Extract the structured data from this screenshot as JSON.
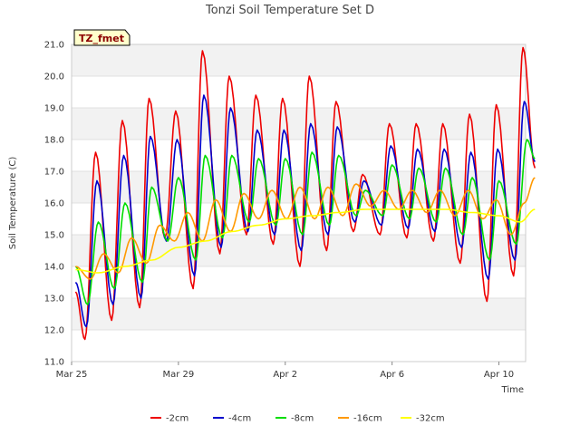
{
  "chart_data": {
    "type": "line",
    "title": "Tonzi Soil Temperature Set D",
    "xlabel": "Time",
    "ylabel": "Soil Temperature (C)",
    "badge": "TZ_fmet",
    "x_unit": "days",
    "xlim": [
      0,
      17.0
    ],
    "ylim": [
      11.0,
      21.0
    ],
    "grid": "alternating bands",
    "legend": "bottom-center",
    "x_ticks": [
      {
        "label": "Mar 25",
        "value": 0
      },
      {
        "label": "Mar 29",
        "value": 4
      },
      {
        "label": "Apr 2",
        "value": 8
      },
      {
        "label": "Apr 6",
        "value": 12
      },
      {
        "label": "Apr 10",
        "value": 16
      }
    ],
    "y_ticks": [
      "11.0",
      "12.0",
      "13.0",
      "14.0",
      "15.0",
      "16.0",
      "17.0",
      "18.0",
      "19.0",
      "20.0",
      "21.0"
    ],
    "series": [
      {
        "name": "-2cm",
        "color": "#ee0000",
        "points": [
          [
            0.15,
            13.2
          ],
          [
            0.5,
            11.7
          ],
          [
            0.9,
            17.6
          ],
          [
            1.5,
            12.3
          ],
          [
            1.9,
            18.6
          ],
          [
            2.55,
            12.7
          ],
          [
            2.9,
            19.3
          ],
          [
            3.5,
            14.9
          ],
          [
            3.9,
            18.9
          ],
          [
            4.55,
            13.3
          ],
          [
            4.9,
            20.8
          ],
          [
            5.55,
            14.4
          ],
          [
            5.9,
            20.0
          ],
          [
            6.55,
            15.0
          ],
          [
            6.9,
            19.4
          ],
          [
            7.55,
            14.7
          ],
          [
            7.9,
            19.3
          ],
          [
            8.55,
            14.0
          ],
          [
            8.9,
            20.0
          ],
          [
            9.55,
            14.5
          ],
          [
            9.9,
            19.2
          ],
          [
            10.55,
            15.1
          ],
          [
            10.9,
            16.9
          ],
          [
            11.55,
            15.0
          ],
          [
            11.9,
            18.5
          ],
          [
            12.55,
            14.9
          ],
          [
            12.9,
            18.5
          ],
          [
            13.55,
            14.8
          ],
          [
            13.9,
            18.5
          ],
          [
            14.55,
            14.1
          ],
          [
            14.9,
            18.8
          ],
          [
            15.55,
            12.9
          ],
          [
            15.9,
            19.1
          ],
          [
            16.55,
            13.7
          ],
          [
            16.9,
            20.9
          ],
          [
            17.35,
            17.1
          ]
        ]
      },
      {
        "name": "-4cm",
        "color": "#0000cc",
        "points": [
          [
            0.15,
            13.5
          ],
          [
            0.55,
            12.1
          ],
          [
            0.95,
            16.7
          ],
          [
            1.55,
            12.8
          ],
          [
            1.95,
            17.5
          ],
          [
            2.6,
            13.0
          ],
          [
            2.95,
            18.1
          ],
          [
            3.55,
            14.8
          ],
          [
            3.95,
            18.0
          ],
          [
            4.6,
            13.7
          ],
          [
            4.95,
            19.4
          ],
          [
            5.6,
            14.6
          ],
          [
            5.95,
            19.0
          ],
          [
            6.6,
            15.1
          ],
          [
            6.95,
            18.3
          ],
          [
            7.6,
            15.0
          ],
          [
            7.95,
            18.3
          ],
          [
            8.6,
            14.5
          ],
          [
            8.95,
            18.5
          ],
          [
            9.6,
            15.0
          ],
          [
            9.95,
            18.4
          ],
          [
            10.6,
            15.4
          ],
          [
            10.95,
            16.7
          ],
          [
            11.6,
            15.3
          ],
          [
            11.95,
            17.8
          ],
          [
            12.6,
            15.2
          ],
          [
            12.95,
            17.7
          ],
          [
            13.6,
            15.1
          ],
          [
            13.95,
            17.7
          ],
          [
            14.6,
            14.6
          ],
          [
            14.95,
            17.6
          ],
          [
            15.6,
            13.6
          ],
          [
            15.95,
            17.7
          ],
          [
            16.6,
            14.2
          ],
          [
            16.95,
            19.2
          ],
          [
            17.35,
            17.3
          ]
        ]
      },
      {
        "name": "-8cm",
        "color": "#00dd00",
        "points": [
          [
            0.15,
            14.0
          ],
          [
            0.6,
            12.8
          ],
          [
            1.0,
            15.4
          ],
          [
            1.6,
            13.3
          ],
          [
            2.0,
            16.0
          ],
          [
            2.65,
            13.5
          ],
          [
            3.0,
            16.5
          ],
          [
            3.6,
            14.8
          ],
          [
            4.0,
            16.8
          ],
          [
            4.65,
            14.2
          ],
          [
            5.0,
            17.5
          ],
          [
            5.65,
            14.9
          ],
          [
            6.0,
            17.5
          ],
          [
            6.65,
            15.4
          ],
          [
            7.0,
            17.4
          ],
          [
            7.65,
            15.3
          ],
          [
            8.0,
            17.4
          ],
          [
            8.65,
            15.0
          ],
          [
            9.0,
            17.6
          ],
          [
            9.65,
            15.3
          ],
          [
            10.0,
            17.5
          ],
          [
            10.65,
            15.6
          ],
          [
            11.0,
            16.4
          ],
          [
            11.65,
            15.6
          ],
          [
            12.0,
            17.2
          ],
          [
            12.65,
            15.5
          ],
          [
            13.0,
            17.1
          ],
          [
            13.65,
            15.4
          ],
          [
            14.0,
            17.1
          ],
          [
            14.65,
            15.0
          ],
          [
            15.0,
            16.8
          ],
          [
            15.65,
            14.2
          ],
          [
            16.0,
            16.7
          ],
          [
            16.65,
            14.7
          ],
          [
            17.05,
            18.0
          ],
          [
            17.35,
            17.4
          ]
        ]
      },
      {
        "name": "-16cm",
        "color": "#ff9900",
        "points": [
          [
            0.15,
            14.0
          ],
          [
            0.7,
            13.6
          ],
          [
            1.2,
            14.4
          ],
          [
            1.75,
            13.8
          ],
          [
            2.25,
            14.9
          ],
          [
            2.8,
            14.1
          ],
          [
            3.3,
            15.3
          ],
          [
            3.85,
            14.8
          ],
          [
            4.35,
            15.7
          ],
          [
            4.9,
            14.8
          ],
          [
            5.4,
            16.1
          ],
          [
            5.95,
            15.1
          ],
          [
            6.45,
            16.3
          ],
          [
            7.0,
            15.5
          ],
          [
            7.5,
            16.4
          ],
          [
            8.05,
            15.5
          ],
          [
            8.55,
            16.5
          ],
          [
            9.1,
            15.5
          ],
          [
            9.6,
            16.5
          ],
          [
            10.15,
            15.6
          ],
          [
            10.65,
            16.6
          ],
          [
            11.2,
            15.9
          ],
          [
            11.7,
            16.4
          ],
          [
            12.25,
            15.8
          ],
          [
            12.75,
            16.4
          ],
          [
            13.3,
            15.7
          ],
          [
            13.8,
            16.4
          ],
          [
            14.35,
            15.6
          ],
          [
            14.85,
            16.4
          ],
          [
            15.4,
            15.5
          ],
          [
            15.9,
            16.1
          ],
          [
            16.45,
            15.0
          ],
          [
            16.95,
            16.0
          ],
          [
            17.35,
            16.8
          ]
        ]
      },
      {
        "name": "-32cm",
        "color": "#ffff00",
        "points": [
          [
            0.15,
            13.9
          ],
          [
            1.0,
            13.8
          ],
          [
            2.0,
            14.0
          ],
          [
            3.0,
            14.2
          ],
          [
            4.0,
            14.6
          ],
          [
            5.0,
            14.8
          ],
          [
            6.0,
            15.1
          ],
          [
            7.0,
            15.3
          ],
          [
            8.0,
            15.5
          ],
          [
            9.0,
            15.6
          ],
          [
            10.0,
            15.7
          ],
          [
            11.0,
            15.8
          ],
          [
            12.0,
            15.8
          ],
          [
            13.0,
            15.8
          ],
          [
            14.0,
            15.8
          ],
          [
            15.0,
            15.7
          ],
          [
            16.0,
            15.6
          ],
          [
            16.8,
            15.4
          ],
          [
            17.35,
            15.8
          ]
        ]
      }
    ]
  }
}
